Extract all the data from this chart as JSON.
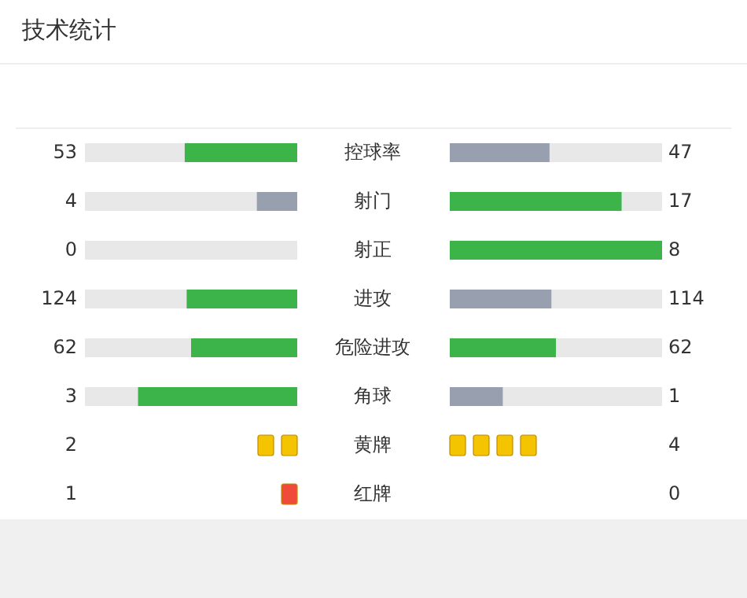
{
  "chart_data": {
    "type": "other",
    "title": "技术统计",
    "categories": [
      "控球率",
      "射门",
      "射正",
      "进攻",
      "危险进攻",
      "角球",
      "黄牌",
      "红牌"
    ],
    "series": [
      {
        "colors": [
          "#3cb44a",
          "#98a0b0",
          "#98a0b0",
          "#3cb44a",
          "#3cb44a",
          "#3cb44a",
          "#f5c400",
          "#f04a3a"
        ],
        "values": [
          53,
          4,
          0,
          124,
          62,
          3,
          2,
          1
        ]
      },
      {
        "colors": [
          "#98a0b0",
          "#3cb44a",
          "#3cb44a",
          "#98a0b0",
          "#3cb44a",
          "#98a0b0",
          "#f5c400",
          "#f04a3a"
        ],
        "values": [
          47,
          17,
          8,
          114,
          62,
          1,
          4,
          0
        ]
      }
    ],
    "data_labels": true
  }
}
